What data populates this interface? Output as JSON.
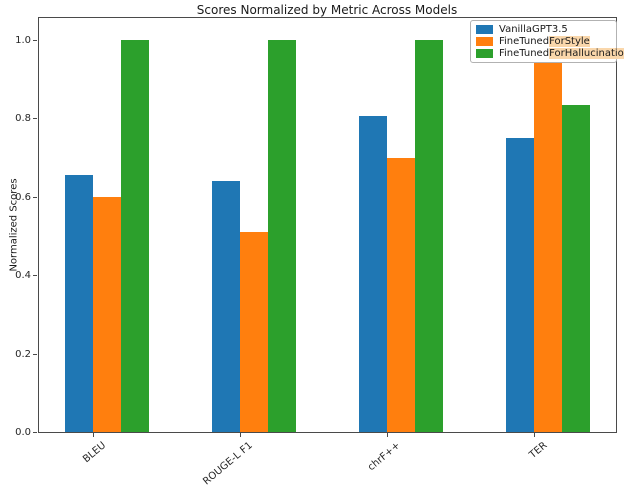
{
  "chart_data": {
    "type": "bar",
    "title": "Scores Normalized by Metric Across Models",
    "xlabel": "",
    "ylabel": "Normalized Scores",
    "categories": [
      "BLEU",
      "ROUGE-L F1",
      "chrF++",
      "TER"
    ],
    "series": [
      {
        "name": "VanillaGPT3.5",
        "color": "#1f77b4",
        "values": [
          0.655,
          0.64,
          0.805,
          0.75
        ]
      },
      {
        "name": "FineTunedForStyle",
        "color": "#ff7f0e",
        "values": [
          0.6,
          0.51,
          0.7,
          1.0
        ]
      },
      {
        "name": "FineTunedForHallucinations",
        "color": "#2ca02c",
        "values": [
          1.0,
          1.0,
          1.0,
          0.835
        ]
      }
    ],
    "yticks": [
      0.0,
      0.2,
      0.4,
      0.6,
      0.8,
      1.0
    ],
    "ylim": [
      0,
      1.06
    ],
    "grid": false,
    "legend_position": "upper right",
    "legend": [
      {
        "plain": "VanillaGPT3.5",
        "highlight": ""
      },
      {
        "plain": "FineTuned",
        "highlight": "ForStyle"
      },
      {
        "plain": "FineTuned",
        "highlight": "ForHallucinations"
      }
    ],
    "highlight_color": "#fad7ab",
    "axis_color": "#4a4a4a"
  }
}
